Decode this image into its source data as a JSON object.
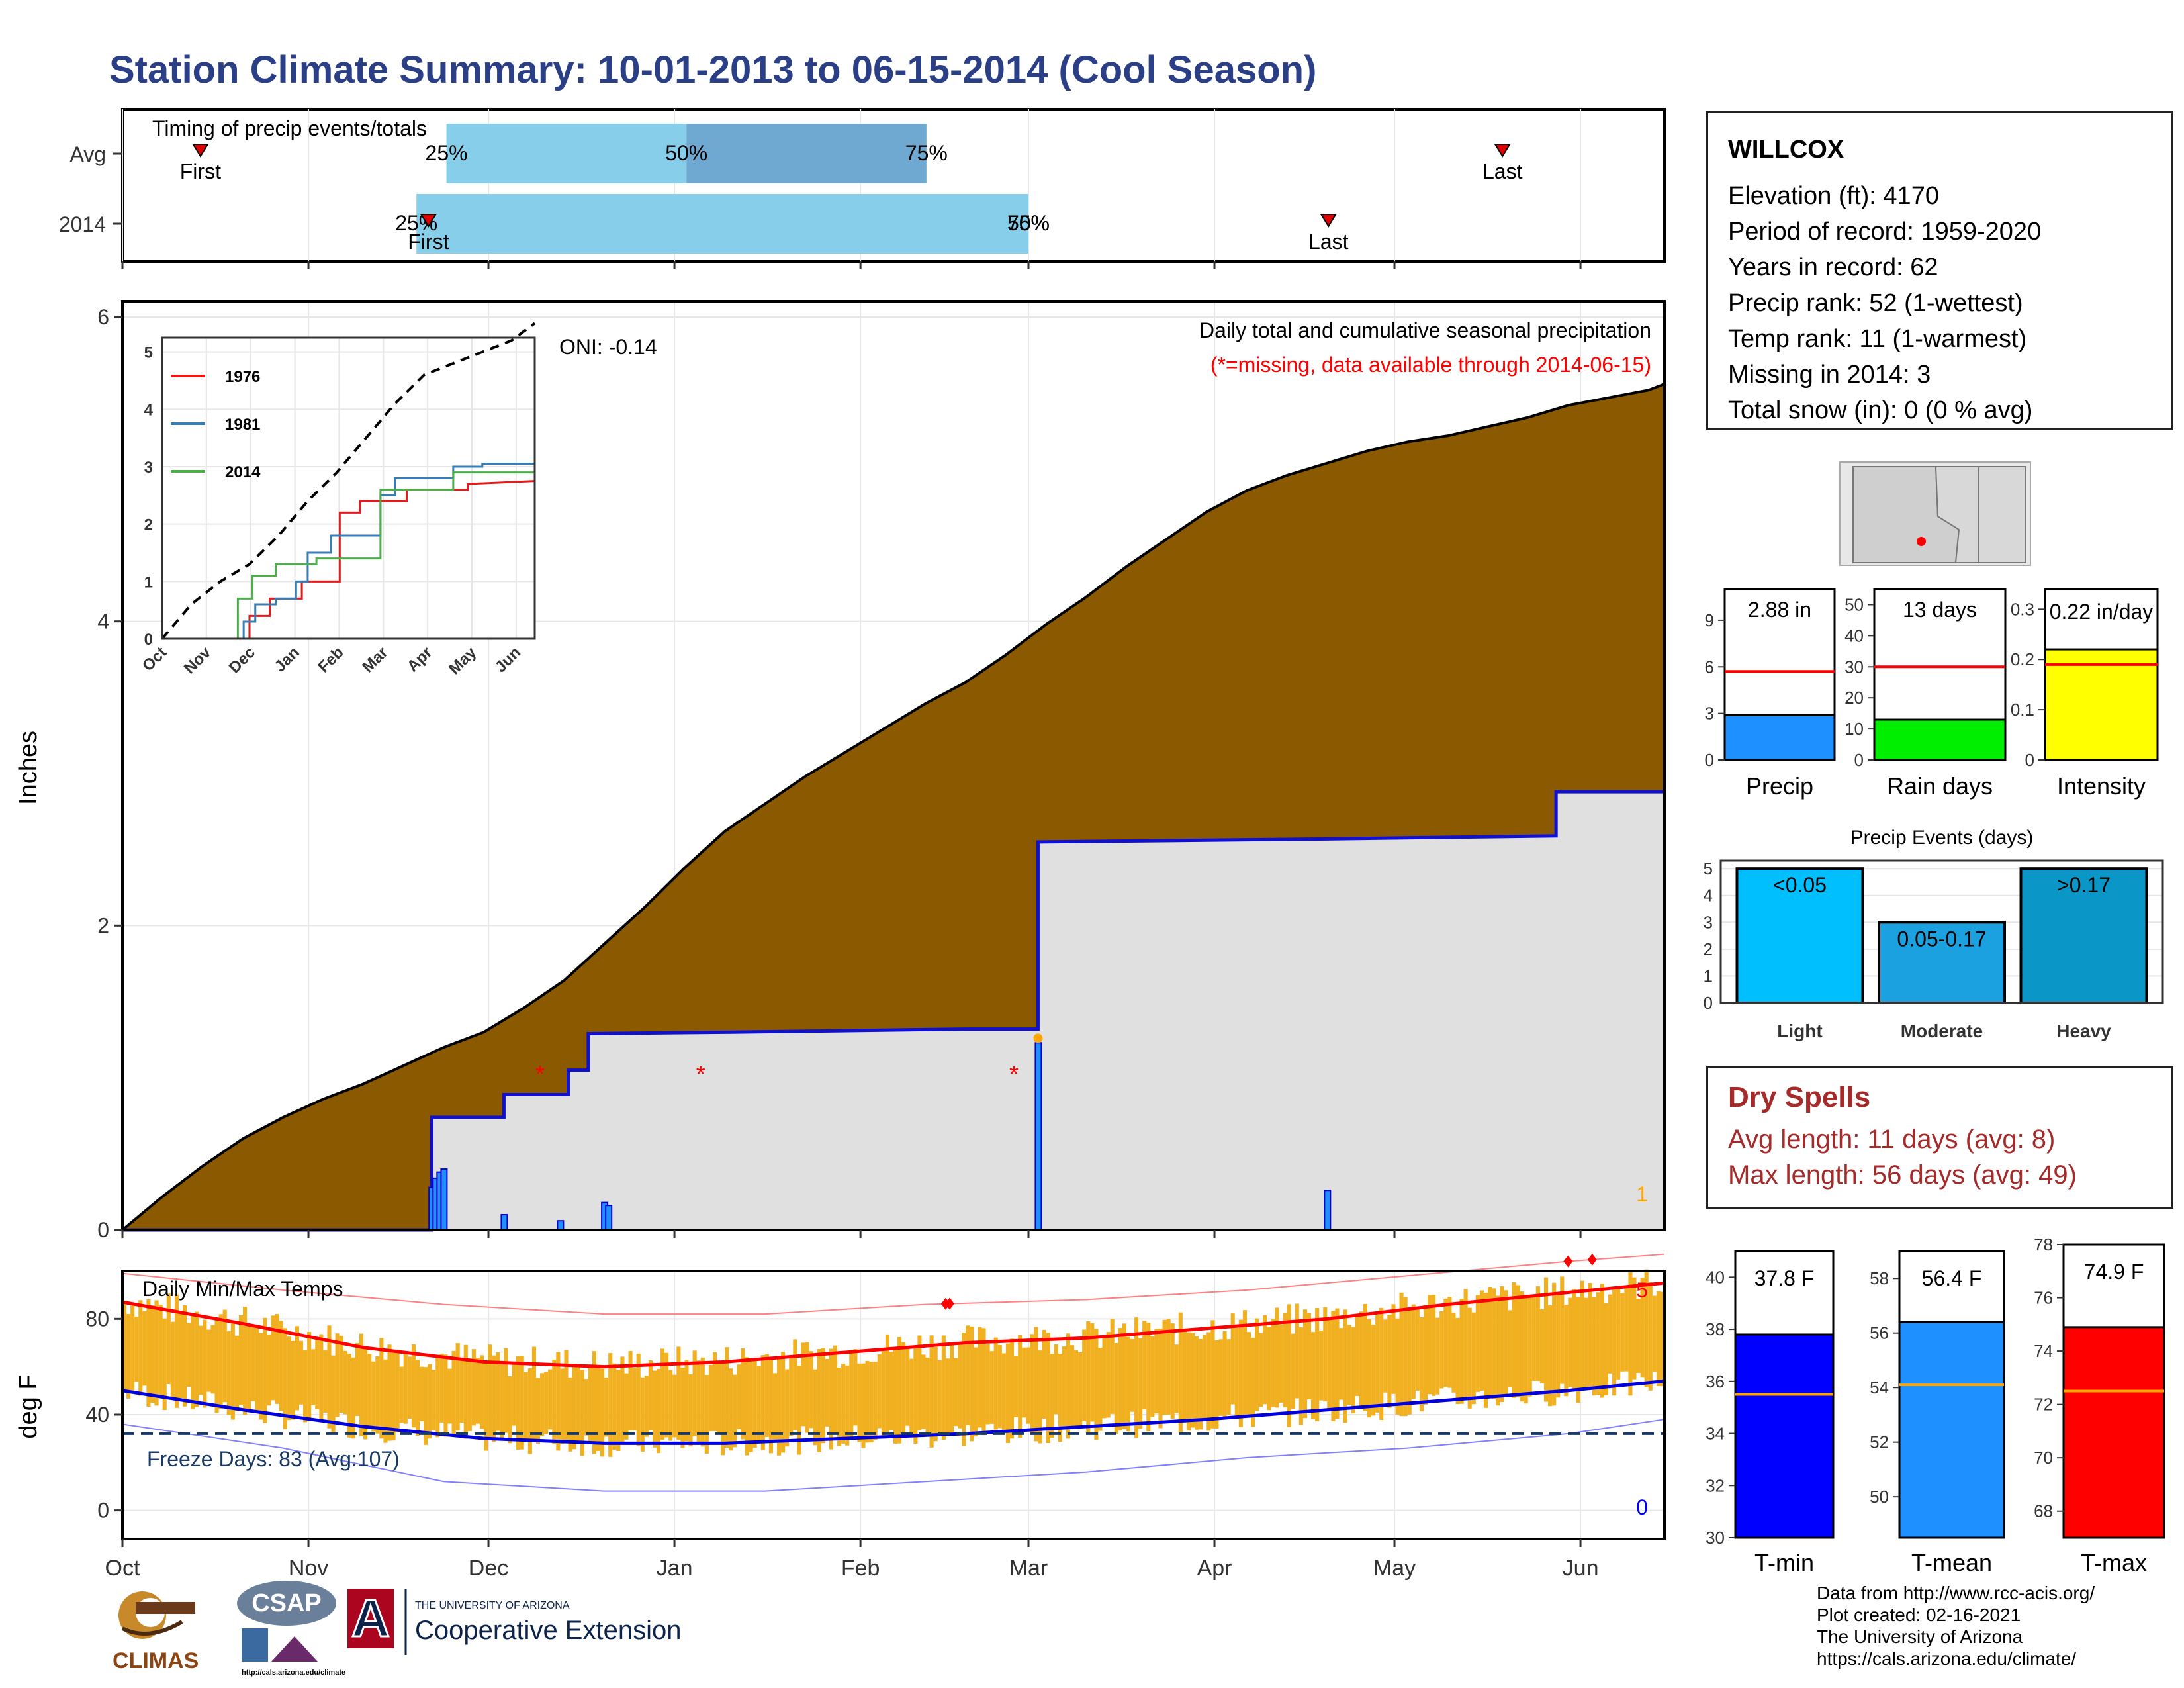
{
  "title": "Station Climate Summary: 10-01-2013 to 06-15-2014 (Cool Season)",
  "station": {
    "name": "WILLCOX",
    "lines": [
      "Elevation (ft): 4170",
      "Period of record: 1959-2020",
      "Years in record: 62",
      "Precip rank: 52 (1-wettest)",
      "Temp rank: 11 (1-warmest)",
      "Missing in 2014: 3",
      "Total snow (in): 0 (0 % avg)"
    ]
  },
  "dry_spells": {
    "title": "Dry Spells",
    "avg": "Avg length: 11 days (avg: 8)",
    "max": "Max length: 56 days (avg: 49)"
  },
  "footer": {
    "credit": "Data from http://www.rcc-acis.org/\nPlot created: 02-16-2021\nThe University of Arizona\nhttps://cals.arizona.edu/climate/",
    "logos": {
      "climas": "CLIMAS",
      "csap": "CSAP",
      "csap_url": "http://cals.arizona.edu/climate",
      "ua_small": "THE UNIVERSITY OF ARIZONA",
      "ua_large": "Cooperative Extension"
    }
  },
  "colors": {
    "title": "#2a3f86",
    "cumulative_avg": "#8b5a00",
    "cumulative_2014": "#e0e0e0",
    "line_2014": "#1010d0",
    "temp_bar": "#f0b020",
    "tmax_line": "#ff0000",
    "tmin_line": "#0000dd",
    "dry": "#a52a2a",
    "accent_light_blue": "#87ceeb",
    "accent_mid_blue": "#6fa8d0"
  },
  "chart_data": [
    {
      "id": "timing",
      "type": "bar",
      "title": "Timing of precip events/totals",
      "rows": [
        {
          "label": "Avg",
          "p25": "Nov 24",
          "p50": "Jan 3",
          "p75": "Feb 12",
          "first": "Oct 14",
          "last": "May 19",
          "p25_label": "25%",
          "p50_label": "50%",
          "p75_label": "75%",
          "first_label": "First",
          "last_label": "Last"
        },
        {
          "label": "2014",
          "p25": "Nov 19",
          "p50": "Mar 1",
          "p75": "Mar 1",
          "first": "Nov 21",
          "last": "Apr 20",
          "p25_label": "25%",
          "p50_label": "50%",
          "p75_label": "75%",
          "first_label": "First",
          "last_label": "Last"
        }
      ]
    },
    {
      "id": "precip",
      "type": "area",
      "ylabel": "Inches",
      "ylim": [
        0,
        6
      ],
      "yticks": [
        0,
        2,
        4,
        6
      ],
      "xticks": [
        "Oct",
        "Nov",
        "Dec",
        "Jan",
        "Feb",
        "Mar",
        "Apr",
        "May",
        "Jun"
      ],
      "annotation_title": "Daily total and cumulative seasonal precipitation",
      "annotation_missing": "(*=missing, data available through 2014-06-15)",
      "oni": "ONI: -0.14",
      "corner_count": "1",
      "avg_cumulative": [
        [
          0,
          0
        ],
        [
          10,
          0.22
        ],
        [
          20,
          0.42
        ],
        [
          30,
          0.6
        ],
        [
          40,
          0.74
        ],
        [
          50,
          0.86
        ],
        [
          60,
          0.96
        ],
        [
          70,
          1.08
        ],
        [
          80,
          1.2
        ],
        [
          90,
          1.3
        ],
        [
          100,
          1.46
        ],
        [
          110,
          1.64
        ],
        [
          120,
          1.88
        ],
        [
          130,
          2.12
        ],
        [
          140,
          2.38
        ],
        [
          150,
          2.62
        ],
        [
          160,
          2.8
        ],
        [
          170,
          2.98
        ],
        [
          180,
          3.14
        ],
        [
          190,
          3.3
        ],
        [
          200,
          3.46
        ],
        [
          210,
          3.6
        ],
        [
          220,
          3.78
        ],
        [
          230,
          3.98
        ],
        [
          240,
          4.16
        ],
        [
          250,
          4.36
        ],
        [
          260,
          4.54
        ],
        [
          270,
          4.72
        ],
        [
          280,
          4.86
        ],
        [
          290,
          4.96
        ],
        [
          300,
          5.04
        ],
        [
          310,
          5.12
        ],
        [
          320,
          5.18
        ],
        [
          330,
          5.22
        ],
        [
          340,
          5.28
        ],
        [
          350,
          5.34
        ],
        [
          360,
          5.42
        ],
        [
          370,
          5.47
        ],
        [
          380,
          5.52
        ],
        [
          384,
          5.56
        ]
      ],
      "cum_2014": [
        [
          0,
          0
        ],
        [
          77,
          0
        ],
        [
          77,
          0.74
        ],
        [
          95,
          0.74
        ],
        [
          95,
          0.89
        ],
        [
          111,
          0.89
        ],
        [
          111,
          1.05
        ],
        [
          116,
          1.05
        ],
        [
          116,
          1.29
        ],
        [
          152,
          1.3
        ],
        [
          210,
          1.32
        ],
        [
          228,
          1.32
        ],
        [
          228,
          2.55
        ],
        [
          300,
          2.57
        ],
        [
          300,
          2.57
        ],
        [
          357,
          2.59
        ],
        [
          357,
          2.88
        ],
        [
          384,
          2.88
        ]
      ],
      "daily_2014": [
        [
          77,
          0.28
        ],
        [
          78,
          0.34
        ],
        [
          79,
          0.38
        ],
        [
          80,
          0.4
        ],
        [
          95,
          0.1
        ],
        [
          109,
          0.06
        ],
        [
          120,
          0.18
        ],
        [
          121,
          0.16
        ],
        [
          228,
          1.23
        ],
        [
          300,
          0.26
        ]
      ],
      "missing_days": [
        104,
        144,
        222
      ],
      "max_marker_day": 228
    },
    {
      "id": "inset",
      "type": "line",
      "ylim": [
        0,
        5
      ],
      "yticks": [
        0,
        1,
        2,
        3,
        4,
        5
      ],
      "xticks": [
        "Oct",
        "Nov",
        "Dec",
        "Jan",
        "Feb",
        "Mar",
        "Apr",
        "May",
        "Jun"
      ],
      "series": [
        {
          "name": "1976",
          "color": "#e41a1c",
          "points": [
            [
              0,
              0
            ],
            [
              60,
              0
            ],
            [
              60,
              0.4
            ],
            [
              74,
              0.4
            ],
            [
              74,
              0.7
            ],
            [
              96,
              0.7
            ],
            [
              96,
              1
            ],
            [
              122,
              1
            ],
            [
              122,
              2.2
            ],
            [
              136,
              2.2
            ],
            [
              136,
              2.4
            ],
            [
              168,
              2.4
            ],
            [
              168,
              2.6
            ],
            [
              210,
              2.6
            ],
            [
              210,
              2.7
            ],
            [
              256,
              2.75
            ]
          ]
        },
        {
          "name": "1981",
          "color": "#377eb8",
          "points": [
            [
              0,
              0
            ],
            [
              56,
              0
            ],
            [
              56,
              0.3
            ],
            [
              64,
              0.3
            ],
            [
              64,
              0.6
            ],
            [
              78,
              0.6
            ],
            [
              78,
              0.7
            ],
            [
              92,
              0.7
            ],
            [
              92,
              1
            ],
            [
              100,
              1
            ],
            [
              100,
              1.5
            ],
            [
              116,
              1.5
            ],
            [
              116,
              1.8
            ],
            [
              150,
              1.8
            ],
            [
              150,
              2.5
            ],
            [
              160,
              2.5
            ],
            [
              160,
              2.8
            ],
            [
              200,
              2.8
            ],
            [
              200,
              3.0
            ],
            [
              220,
              3.0
            ],
            [
              220,
              3.05
            ],
            [
              256,
              3.05
            ]
          ]
        },
        {
          "name": "2014",
          "color": "#4daf4a",
          "points": [
            [
              0,
              0
            ],
            [
              52,
              0
            ],
            [
              52,
              0.7
            ],
            [
              62,
              0.7
            ],
            [
              62,
              1.1
            ],
            [
              78,
              1.1
            ],
            [
              78,
              1.3
            ],
            [
              106,
              1.3
            ],
            [
              106,
              1.4
            ],
            [
              150,
              1.4
            ],
            [
              150,
              2.6
            ],
            [
              200,
              2.6
            ],
            [
              200,
              2.9
            ],
            [
              256,
              2.9
            ]
          ]
        }
      ],
      "avg_dashed": [
        [
          0,
          0
        ],
        [
          20,
          0.6
        ],
        [
          40,
          1.0
        ],
        [
          60,
          1.3
        ],
        [
          80,
          1.8
        ],
        [
          100,
          2.4
        ],
        [
          120,
          2.9
        ],
        [
          140,
          3.5
        ],
        [
          160,
          4.1
        ],
        [
          180,
          4.6
        ],
        [
          200,
          4.8
        ],
        [
          220,
          5.0
        ],
        [
          240,
          5.2
        ],
        [
          256,
          5.5
        ]
      ]
    },
    {
      "id": "summary_bars",
      "type": "bar",
      "bars": [
        {
          "label": "Precip",
          "value": 2.88,
          "avg": 5.7,
          "ymax": 11,
          "yticks": [
            0,
            3,
            6,
            9
          ],
          "value_label": "2.88 in",
          "color": "#1e90ff"
        },
        {
          "label": "Rain days",
          "value": 13,
          "avg": 30,
          "ymax": 55,
          "yticks": [
            0,
            10,
            20,
            30,
            40,
            50
          ],
          "value_label": "13 days",
          "color": "#00ee00"
        },
        {
          "label": "Intensity",
          "value": 0.22,
          "avg": 0.19,
          "ymax": 0.34,
          "yticks": [
            0.0,
            0.1,
            0.2,
            0.3
          ],
          "value_label": "0.22 in/day",
          "color": "#ffff00"
        }
      ]
    },
    {
      "id": "events",
      "type": "bar",
      "title": "Precip Events (days)",
      "categories": [
        "Light",
        "Moderate",
        "Heavy"
      ],
      "values": [
        5,
        3,
        5
      ],
      "bar_labels": [
        "<0.05",
        "0.05-0.17",
        ">0.17"
      ],
      "colors": [
        "#00bfff",
        "#1ca1e0",
        "#0b96c8"
      ],
      "ylim": [
        0,
        5.3
      ],
      "yticks": [
        0,
        1,
        2,
        3,
        4,
        5
      ]
    },
    {
      "id": "temps",
      "type": "line",
      "title": "Daily Min/Max Temps",
      "ylabel": "deg F",
      "ylim": [
        -12,
        100
      ],
      "yticks": [
        0,
        40,
        80
      ],
      "xticks": [
        "Oct",
        "Nov",
        "Dec",
        "Jan",
        "Feb",
        "Mar",
        "Apr",
        "May",
        "Jun"
      ],
      "freeze_label": "Freeze Days: 83 (Avg:107)",
      "freeze_line": 32,
      "count_high": "5",
      "count_low": "0",
      "tmax_avg": [
        [
          0,
          87
        ],
        [
          30,
          78
        ],
        [
          60,
          68
        ],
        [
          90,
          62
        ],
        [
          120,
          60
        ],
        [
          150,
          62
        ],
        [
          180,
          66
        ],
        [
          210,
          70
        ],
        [
          240,
          72
        ],
        [
          270,
          76
        ],
        [
          300,
          80
        ],
        [
          330,
          86
        ],
        [
          360,
          91
        ],
        [
          384,
          95
        ]
      ],
      "tmin_avg": [
        [
          0,
          50
        ],
        [
          30,
          42
        ],
        [
          60,
          35
        ],
        [
          90,
          30
        ],
        [
          120,
          28
        ],
        [
          150,
          28
        ],
        [
          180,
          30
        ],
        [
          210,
          32
        ],
        [
          240,
          35
        ],
        [
          270,
          38
        ],
        [
          300,
          42
        ],
        [
          330,
          46
        ],
        [
          360,
          50
        ],
        [
          384,
          54
        ]
      ],
      "record_high": [
        [
          0,
          99
        ],
        [
          40,
          92
        ],
        [
          80,
          86
        ],
        [
          120,
          82
        ],
        [
          160,
          82
        ],
        [
          200,
          86
        ],
        [
          240,
          88
        ],
        [
          280,
          92
        ],
        [
          320,
          98
        ],
        [
          360,
          104
        ],
        [
          384,
          107
        ]
      ],
      "record_low": [
        [
          0,
          36
        ],
        [
          40,
          26
        ],
        [
          80,
          12
        ],
        [
          120,
          8
        ],
        [
          160,
          8
        ],
        [
          200,
          12
        ],
        [
          240,
          16
        ],
        [
          280,
          22
        ],
        [
          320,
          26
        ],
        [
          360,
          32
        ],
        [
          384,
          38
        ]
      ],
      "record_days": [
        205,
        206,
        360,
        366
      ]
    },
    {
      "id": "temp_summary",
      "type": "bar",
      "bars": [
        {
          "label": "T-min",
          "value": 37.8,
          "avg": 35.5,
          "ymin": 30,
          "ymax": 41,
          "yticks": [
            30,
            32,
            34,
            36,
            38,
            40
          ],
          "value_label": "37.8 F",
          "color": "#0000ff"
        },
        {
          "label": "T-mean",
          "value": 56.4,
          "avg": 54.1,
          "ymin": 48.5,
          "ymax": 59,
          "yticks": [
            50,
            52,
            54,
            56,
            58
          ],
          "value_label": "56.4 F",
          "color": "#1e90ff"
        },
        {
          "label": "T-max",
          "value": 74.9,
          "avg": 72.5,
          "ymin": 67,
          "ymax": 78,
          "yticks": [
            68,
            70,
            72,
            74,
            76,
            78
          ],
          "value_label": "74.9 F",
          "color": "#ff0000"
        }
      ]
    }
  ]
}
